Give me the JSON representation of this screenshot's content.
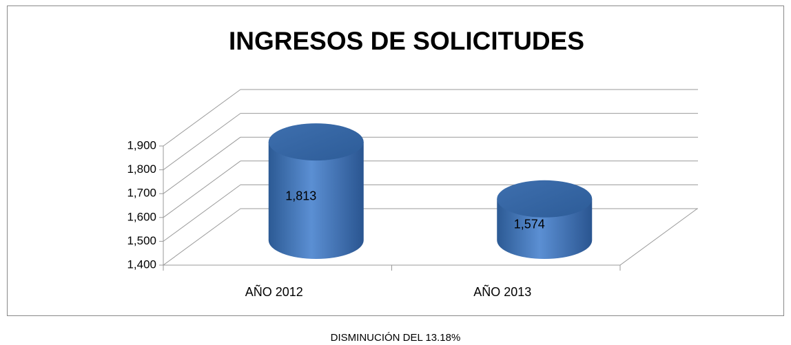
{
  "chart_data": {
    "type": "bar3d",
    "title": "INGRESOS DE SOLICITUDES",
    "categories": [
      "AÑO 2012",
      "AÑO 2013"
    ],
    "values": [
      1813,
      1574
    ],
    "value_labels": [
      "1,813",
      "1,574"
    ],
    "color": "#4a7ebb",
    "ylim": [
      1400,
      1900
    ],
    "yticks": [
      {
        "value": 1400,
        "label": "1,400"
      },
      {
        "value": 1500,
        "label": "1,500"
      },
      {
        "value": 1600,
        "label": "1,600"
      },
      {
        "value": 1700,
        "label": "1,700"
      },
      {
        "value": 1800,
        "label": "1,800"
      },
      {
        "value": 1900,
        "label": "1,900"
      }
    ],
    "grid": true,
    "annotation": "DISMINUCIÓN DEL 13.18%"
  }
}
